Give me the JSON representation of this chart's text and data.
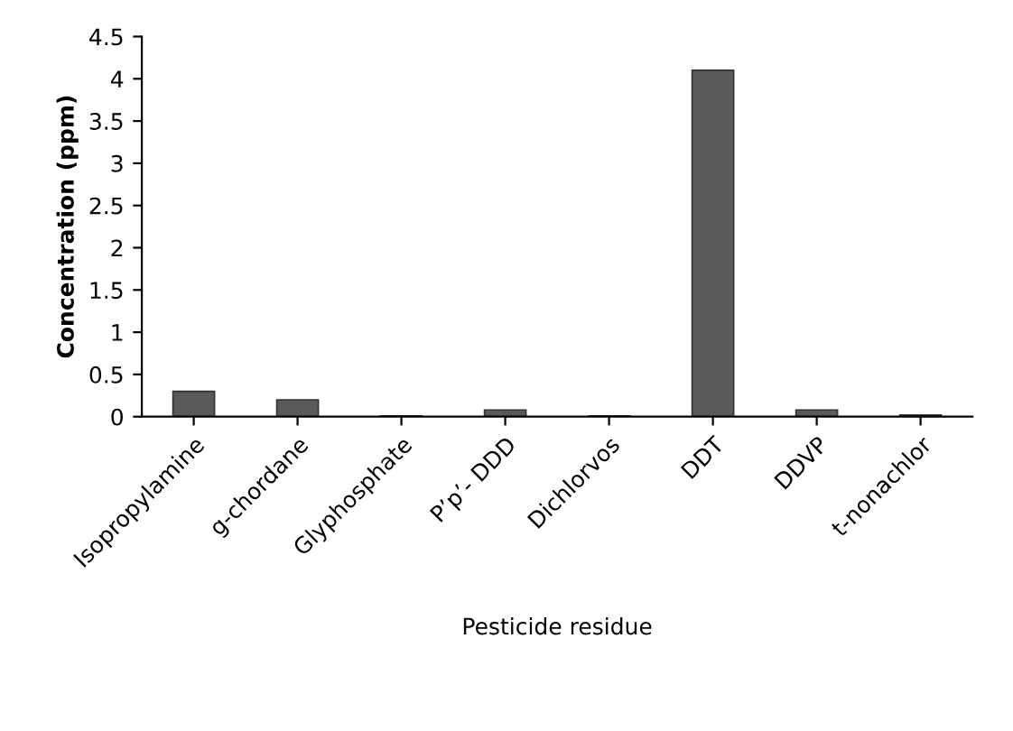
{
  "chart_data": {
    "type": "bar",
    "xlabel": "Pesticide residue",
    "ylabel": "Concentration (ppm)",
    "categories": [
      "Isopropylamine",
      "g-chordane",
      "Glyphosphate",
      "P’p’- DDD",
      "Dichlorvos",
      "DDT",
      "DDVP",
      "t-nonachlor"
    ],
    "values": [
      0.3,
      0.2,
      0.01,
      0.08,
      0.01,
      4.1,
      0.08,
      0.02
    ],
    "color": "#5a5a5a",
    "ylim": [
      0,
      4.5
    ],
    "yticks": [
      0,
      0.5,
      1,
      1.5,
      2,
      2.5,
      3,
      3.5,
      4,
      4.5
    ],
    "grid": false
  }
}
